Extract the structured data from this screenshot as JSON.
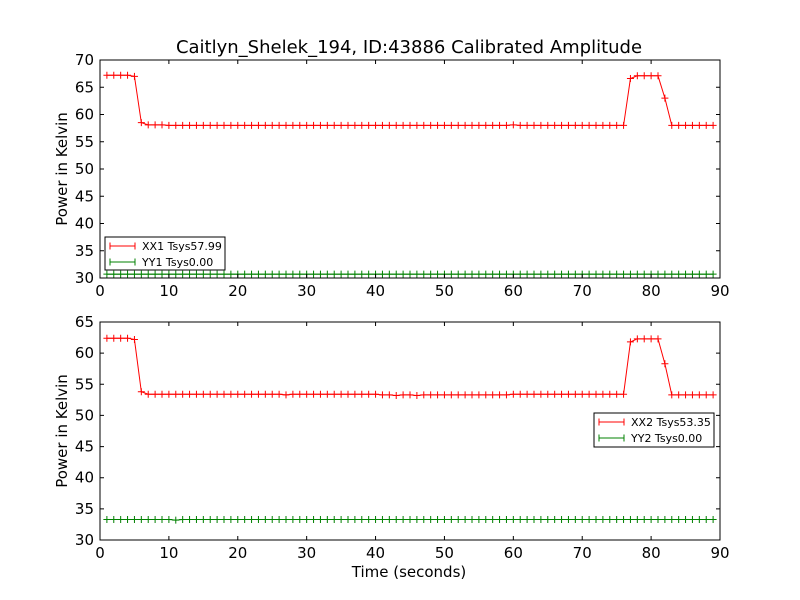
{
  "figure": {
    "title": "Caitlyn_Shelek_194, ID:43886 Calibrated Amplitude",
    "xlabel": "Time (seconds)"
  },
  "colors": {
    "xx": "#ff0000",
    "yy": "#008000",
    "axes": "#000000",
    "background": "#ffffff"
  },
  "chart_data": [
    {
      "type": "line",
      "ylabel": "Power in Kelvin",
      "xlim": [
        0,
        90
      ],
      "ylim": [
        30,
        70
      ],
      "xticks": [
        0,
        10,
        20,
        30,
        40,
        50,
        60,
        70,
        80,
        90
      ],
      "yticks": [
        30,
        35,
        40,
        45,
        50,
        55,
        60,
        65,
        70
      ],
      "grid": false,
      "legend_position": "lower-left",
      "markers": "+",
      "series": [
        {
          "name": "XX1 Tsys57.99",
          "color": "#ff0000",
          "x": [
            1,
            2,
            3,
            4,
            5,
            6,
            7,
            8,
            9,
            10,
            11,
            12,
            13,
            14,
            15,
            16,
            17,
            18,
            19,
            20,
            21,
            22,
            23,
            24,
            25,
            26,
            27,
            28,
            29,
            30,
            31,
            32,
            33,
            34,
            35,
            36,
            37,
            38,
            39,
            40,
            41,
            42,
            43,
            44,
            45,
            46,
            47,
            48,
            49,
            50,
            51,
            52,
            53,
            54,
            55,
            56,
            57,
            58,
            59,
            60,
            61,
            62,
            63,
            64,
            65,
            66,
            67,
            68,
            69,
            70,
            71,
            72,
            73,
            74,
            75,
            76,
            77,
            78,
            79,
            80,
            81,
            82,
            83,
            84,
            85,
            86,
            87,
            88,
            89
          ],
          "y": [
            67.2,
            67.2,
            67.2,
            67.2,
            67.0,
            58.5,
            58.1,
            58.1,
            58.1,
            58.0,
            58.0,
            58.0,
            58.0,
            58.0,
            58.0,
            58.0,
            58.0,
            58.0,
            58.0,
            58.0,
            58.0,
            58.0,
            58.0,
            58.0,
            58.0,
            58.0,
            58.0,
            58.0,
            58.0,
            58.0,
            58.0,
            58.0,
            58.0,
            58.0,
            58.0,
            58.0,
            58.0,
            58.0,
            58.0,
            58.0,
            58.0,
            58.0,
            58.0,
            58.0,
            58.0,
            58.0,
            58.0,
            58.0,
            58.0,
            58.0,
            58.0,
            58.0,
            58.0,
            58.0,
            58.0,
            58.0,
            58.0,
            58.0,
            58.0,
            58.1,
            58.0,
            58.0,
            58.0,
            58.0,
            58.0,
            58.0,
            58.0,
            58.0,
            58.0,
            58.0,
            58.0,
            58.0,
            58.0,
            58.0,
            58.0,
            58.0,
            66.6,
            67.1,
            67.1,
            67.1,
            67.1,
            63.0,
            58.0,
            58.0,
            58.0,
            58.0,
            58.0,
            58.0,
            58.0
          ]
        },
        {
          "name": "YY1 Tsys0.00",
          "color": "#008000",
          "x": [
            1,
            2,
            3,
            4,
            5,
            6,
            7,
            8,
            9,
            10,
            11,
            12,
            13,
            14,
            15,
            16,
            17,
            18,
            19,
            20,
            21,
            22,
            23,
            24,
            25,
            26,
            27,
            28,
            29,
            30,
            31,
            32,
            33,
            34,
            35,
            36,
            37,
            38,
            39,
            40,
            41,
            42,
            43,
            44,
            45,
            46,
            47,
            48,
            49,
            50,
            51,
            52,
            53,
            54,
            55,
            56,
            57,
            58,
            59,
            60,
            61,
            62,
            63,
            64,
            65,
            66,
            67,
            68,
            69,
            70,
            71,
            72,
            73,
            74,
            75,
            76,
            77,
            78,
            79,
            80,
            81,
            82,
            83,
            84,
            85,
            86,
            87,
            88,
            89
          ],
          "y": [
            30.7,
            30.7,
            30.7,
            30.7,
            30.7,
            30.7,
            30.7,
            30.7,
            30.7,
            30.7,
            30.7,
            30.7,
            30.7,
            30.7,
            30.7,
            30.7,
            30.7,
            30.7,
            30.7,
            30.7,
            30.7,
            30.7,
            30.7,
            30.7,
            30.7,
            30.7,
            30.7,
            30.7,
            30.7,
            30.7,
            30.7,
            30.7,
            30.7,
            30.7,
            30.7,
            30.7,
            30.7,
            30.7,
            30.7,
            30.7,
            30.7,
            30.7,
            30.7,
            30.7,
            30.7,
            30.7,
            30.7,
            30.7,
            30.7,
            30.7,
            30.7,
            30.7,
            30.7,
            30.7,
            30.7,
            30.7,
            30.7,
            30.7,
            30.7,
            30.7,
            30.7,
            30.7,
            30.7,
            30.7,
            30.7,
            30.7,
            30.7,
            30.7,
            30.7,
            30.7,
            30.7,
            30.7,
            30.7,
            30.7,
            30.7,
            30.7,
            30.7,
            30.7,
            30.7,
            30.7,
            30.7,
            30.7,
            30.7,
            30.7,
            30.7,
            30.7,
            30.7,
            30.7,
            30.7
          ]
        }
      ]
    },
    {
      "type": "line",
      "ylabel": "Power in Kelvin",
      "xlim": [
        0,
        90
      ],
      "ylim": [
        30,
        65
      ],
      "xticks": [
        0,
        10,
        20,
        30,
        40,
        50,
        60,
        70,
        80,
        90
      ],
      "yticks": [
        30,
        35,
        40,
        45,
        50,
        55,
        60,
        65
      ],
      "grid": false,
      "legend_position": "center-right",
      "markers": "+",
      "series": [
        {
          "name": "XX2 Tsys53.35",
          "color": "#ff0000",
          "x": [
            1,
            2,
            3,
            4,
            5,
            6,
            7,
            8,
            9,
            10,
            11,
            12,
            13,
            14,
            15,
            16,
            17,
            18,
            19,
            20,
            21,
            22,
            23,
            24,
            25,
            26,
            27,
            28,
            29,
            30,
            31,
            32,
            33,
            34,
            35,
            36,
            37,
            38,
            39,
            40,
            41,
            42,
            43,
            44,
            45,
            46,
            47,
            48,
            49,
            50,
            51,
            52,
            53,
            54,
            55,
            56,
            57,
            58,
            59,
            60,
            61,
            62,
            63,
            64,
            65,
            66,
            67,
            68,
            69,
            70,
            71,
            72,
            73,
            74,
            75,
            76,
            77,
            78,
            79,
            80,
            81,
            82,
            83,
            84,
            85,
            86,
            87,
            88,
            89
          ],
          "y": [
            62.4,
            62.4,
            62.4,
            62.4,
            62.2,
            53.8,
            53.4,
            53.4,
            53.4,
            53.4,
            53.4,
            53.4,
            53.4,
            53.4,
            53.4,
            53.4,
            53.4,
            53.4,
            53.4,
            53.4,
            53.4,
            53.4,
            53.4,
            53.4,
            53.4,
            53.4,
            53.3,
            53.4,
            53.4,
            53.4,
            53.4,
            53.4,
            53.4,
            53.4,
            53.4,
            53.4,
            53.4,
            53.4,
            53.4,
            53.4,
            53.3,
            53.3,
            53.2,
            53.3,
            53.3,
            53.2,
            53.3,
            53.3,
            53.3,
            53.3,
            53.3,
            53.3,
            53.3,
            53.3,
            53.3,
            53.3,
            53.3,
            53.3,
            53.3,
            53.4,
            53.4,
            53.4,
            53.4,
            53.4,
            53.4,
            53.4,
            53.4,
            53.4,
            53.4,
            53.4,
            53.4,
            53.4,
            53.4,
            53.4,
            53.4,
            53.4,
            61.8,
            62.3,
            62.3,
            62.3,
            62.3,
            58.3,
            53.3,
            53.3,
            53.3,
            53.3,
            53.3,
            53.3,
            53.3
          ]
        },
        {
          "name": "YY2 Tsys0.00",
          "color": "#008000",
          "x": [
            1,
            2,
            3,
            4,
            5,
            6,
            7,
            8,
            9,
            10,
            11,
            12,
            13,
            14,
            15,
            16,
            17,
            18,
            19,
            20,
            21,
            22,
            23,
            24,
            25,
            26,
            27,
            28,
            29,
            30,
            31,
            32,
            33,
            34,
            35,
            36,
            37,
            38,
            39,
            40,
            41,
            42,
            43,
            44,
            45,
            46,
            47,
            48,
            49,
            50,
            51,
            52,
            53,
            54,
            55,
            56,
            57,
            58,
            59,
            60,
            61,
            62,
            63,
            64,
            65,
            66,
            67,
            68,
            69,
            70,
            71,
            72,
            73,
            74,
            75,
            76,
            77,
            78,
            79,
            80,
            81,
            82,
            83,
            84,
            85,
            86,
            87,
            88,
            89
          ],
          "y": [
            33.3,
            33.3,
            33.3,
            33.3,
            33.3,
            33.3,
            33.3,
            33.3,
            33.3,
            33.3,
            33.2,
            33.3,
            33.3,
            33.3,
            33.3,
            33.3,
            33.3,
            33.3,
            33.3,
            33.3,
            33.3,
            33.3,
            33.3,
            33.3,
            33.3,
            33.3,
            33.3,
            33.3,
            33.3,
            33.3,
            33.3,
            33.3,
            33.3,
            33.3,
            33.3,
            33.3,
            33.3,
            33.3,
            33.3,
            33.3,
            33.3,
            33.3,
            33.3,
            33.3,
            33.3,
            33.3,
            33.3,
            33.3,
            33.3,
            33.3,
            33.3,
            33.3,
            33.3,
            33.3,
            33.3,
            33.3,
            33.3,
            33.3,
            33.3,
            33.3,
            33.3,
            33.3,
            33.3,
            33.3,
            33.3,
            33.3,
            33.3,
            33.3,
            33.3,
            33.3,
            33.3,
            33.3,
            33.3,
            33.3,
            33.3,
            33.3,
            33.3,
            33.3,
            33.3,
            33.3,
            33.3,
            33.3,
            33.3,
            33.3,
            33.3,
            33.3,
            33.3,
            33.3,
            33.3
          ]
        }
      ]
    }
  ]
}
